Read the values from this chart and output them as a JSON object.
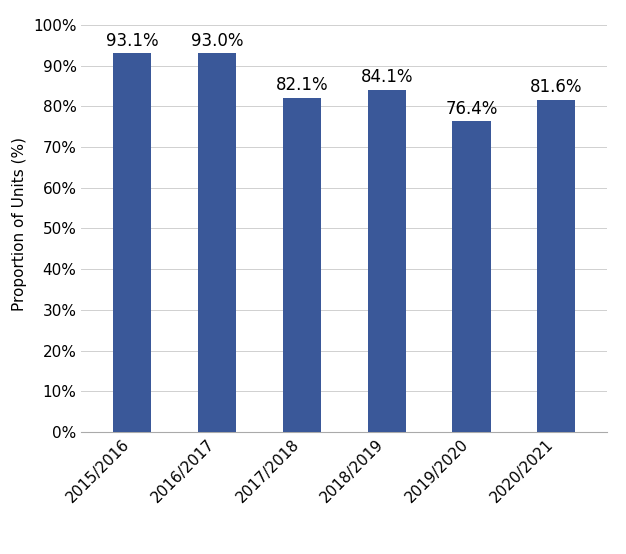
{
  "categories": [
    "2015/2016",
    "2016/2017",
    "2017/2018",
    "2018/2019",
    "2019/2020",
    "2020/2021"
  ],
  "values": [
    93.1,
    93.0,
    82.1,
    84.1,
    76.4,
    81.6
  ],
  "bar_color": "#3A5899",
  "ylabel": "Proportion of Units (%)",
  "ylim": [
    0,
    100
  ],
  "ytick_step": 10,
  "background_color": "#ffffff",
  "grid_color": "#d0d0d0",
  "label_fontsize": 11,
  "tick_fontsize": 11,
  "bar_label_fontsize": 12,
  "bar_width": 0.45,
  "figsize": [
    6.26,
    5.54
  ],
  "dpi": 100
}
